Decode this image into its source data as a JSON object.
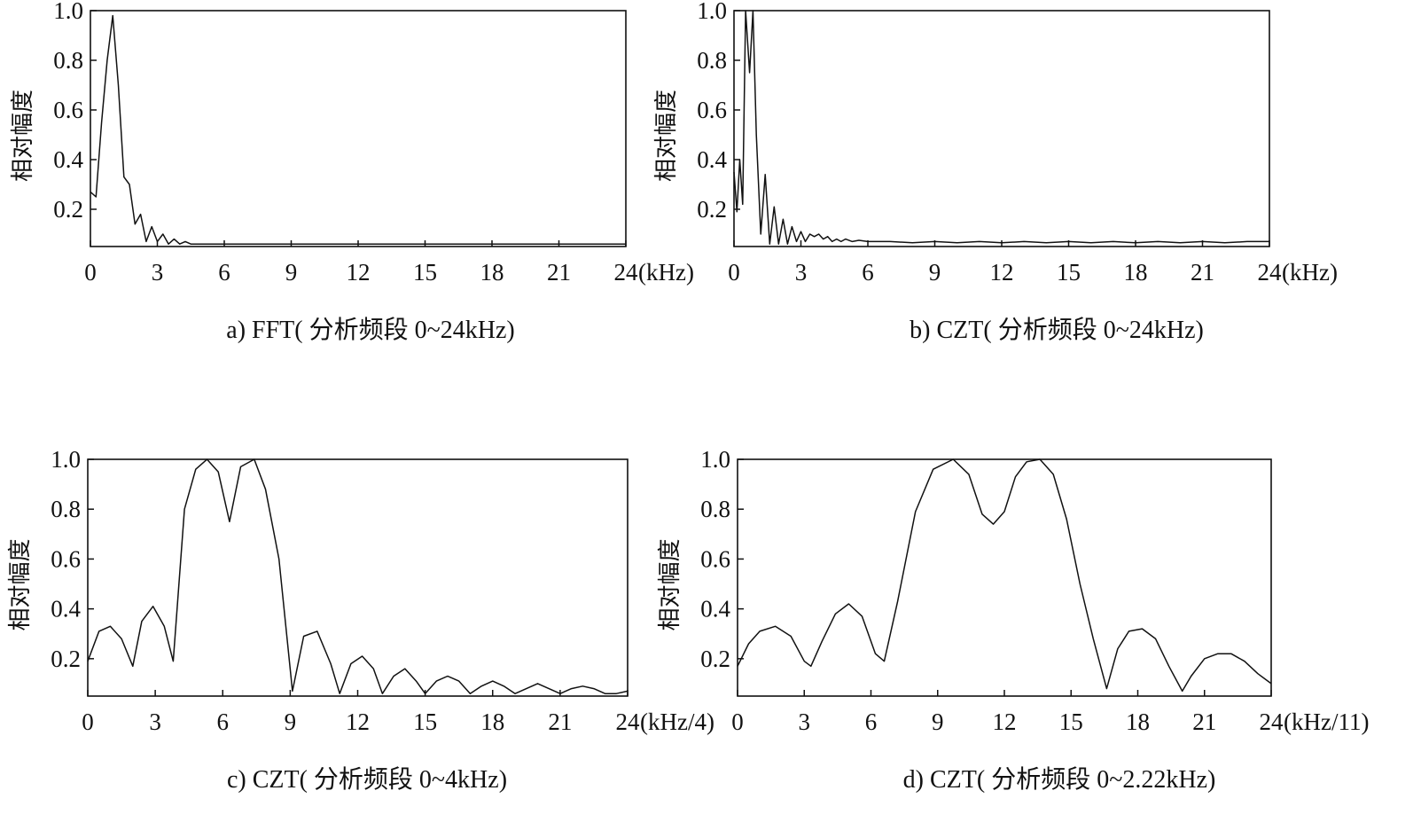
{
  "chart_data": [
    {
      "type": "line",
      "caption": "a) FFT( 分析频段 0~24kHz)",
      "ylabel": "相对幅度",
      "xunit": "(kHz)",
      "xlim": [
        0,
        24
      ],
      "ylim": [
        0.05,
        1.0
      ],
      "xticks": [
        0,
        3,
        6,
        9,
        12,
        15,
        18,
        21,
        24
      ],
      "yticks": [
        "0.2",
        "0.4",
        "0.6",
        "0.8",
        "1.0"
      ],
      "series": [
        {
          "x": [
            0,
            0.25,
            0.5,
            0.75,
            1.0,
            1.25,
            1.5,
            1.75,
            2.0,
            2.25,
            2.5,
            2.75,
            3.0,
            3.25,
            3.5,
            3.75,
            4.0,
            4.25,
            4.5,
            5,
            6,
            9,
            12,
            15,
            18,
            21,
            24
          ],
          "y": [
            0.27,
            0.25,
            0.55,
            0.8,
            0.98,
            0.7,
            0.33,
            0.3,
            0.14,
            0.18,
            0.07,
            0.13,
            0.07,
            0.1,
            0.06,
            0.08,
            0.06,
            0.07,
            0.06,
            0.06,
            0.06,
            0.06,
            0.06,
            0.06,
            0.06,
            0.06,
            0.06
          ]
        }
      ]
    },
    {
      "type": "line",
      "caption": "b) CZT( 分析频段 0~24kHz)",
      "ylabel": "相对幅度",
      "xunit": "(kHz)",
      "xlim": [
        0,
        24
      ],
      "ylim": [
        0.05,
        1.0
      ],
      "xticks": [
        0,
        3,
        6,
        9,
        12,
        15,
        18,
        21,
        24
      ],
      "yticks": [
        "0.2",
        "0.4",
        "0.6",
        "0.8",
        "1.0"
      ],
      "series": [
        {
          "x": [
            0,
            0.13,
            0.26,
            0.39,
            0.52,
            0.7,
            0.85,
            1.0,
            1.2,
            1.4,
            1.6,
            1.8,
            2.0,
            2.2,
            2.4,
            2.6,
            2.8,
            3.0,
            3.2,
            3.4,
            3.6,
            3.8,
            4.0,
            4.2,
            4.4,
            4.6,
            4.8,
            5.0,
            5.3,
            5.6,
            6.0,
            7,
            8,
            9,
            10,
            11,
            12,
            13,
            14,
            15,
            16,
            17,
            18,
            19,
            20,
            21,
            22,
            23,
            24
          ],
          "y": [
            0.35,
            0.19,
            0.4,
            0.22,
            1.0,
            0.75,
            1.0,
            0.5,
            0.1,
            0.34,
            0.06,
            0.21,
            0.06,
            0.16,
            0.06,
            0.13,
            0.07,
            0.11,
            0.07,
            0.1,
            0.09,
            0.1,
            0.08,
            0.09,
            0.07,
            0.08,
            0.07,
            0.08,
            0.07,
            0.075,
            0.07,
            0.07,
            0.065,
            0.07,
            0.065,
            0.07,
            0.065,
            0.07,
            0.065,
            0.07,
            0.065,
            0.07,
            0.065,
            0.07,
            0.065,
            0.07,
            0.065,
            0.07,
            0.07
          ]
        }
      ]
    },
    {
      "type": "line",
      "caption": "c) CZT( 分析频段 0~4kHz)",
      "ylabel": "相对幅度",
      "xunit": "(kHz/4)",
      "xlim": [
        0,
        24
      ],
      "ylim": [
        0.05,
        1.0
      ],
      "xticks": [
        0,
        3,
        6,
        9,
        12,
        15,
        18,
        21,
        24
      ],
      "yticks": [
        "0.2",
        "0.4",
        "0.6",
        "0.8",
        "1.0"
      ],
      "series": [
        {
          "x": [
            0,
            0.5,
            1.0,
            1.5,
            2.0,
            2.4,
            2.9,
            3.4,
            3.8,
            4.3,
            4.8,
            5.3,
            5.8,
            6.3,
            6.8,
            7.4,
            7.9,
            8.5,
            9.1,
            9.6,
            10.2,
            10.8,
            11.2,
            11.7,
            12.2,
            12.7,
            13.1,
            13.6,
            14.1,
            14.6,
            15.0,
            15.5,
            16.0,
            16.5,
            17.0,
            17.5,
            18.0,
            18.5,
            19.0,
            19.5,
            20.0,
            20.5,
            21.0,
            21.5,
            22.0,
            22.5,
            23.0,
            23.5,
            24.0
          ],
          "y": [
            0.19,
            0.31,
            0.33,
            0.28,
            0.17,
            0.35,
            0.41,
            0.33,
            0.19,
            0.8,
            0.96,
            1.0,
            0.95,
            0.75,
            0.97,
            1.0,
            0.88,
            0.6,
            0.07,
            0.29,
            0.31,
            0.18,
            0.06,
            0.18,
            0.21,
            0.16,
            0.06,
            0.13,
            0.16,
            0.11,
            0.06,
            0.11,
            0.13,
            0.11,
            0.06,
            0.09,
            0.11,
            0.09,
            0.06,
            0.08,
            0.1,
            0.08,
            0.06,
            0.08,
            0.09,
            0.08,
            0.06,
            0.06,
            0.07
          ]
        }
      ]
    },
    {
      "type": "line",
      "caption": "d) CZT( 分析频段 0~2.22kHz)",
      "ylabel": "相对幅度",
      "xunit": "(kHz/11)",
      "xlim": [
        0,
        24
      ],
      "ylim": [
        0.05,
        1.0
      ],
      "xticks": [
        0,
        3,
        6,
        9,
        12,
        15,
        18,
        21,
        24
      ],
      "yticks": [
        "0.2",
        "0.4",
        "0.6",
        "0.8",
        "1.0"
      ],
      "series": [
        {
          "x": [
            0,
            0.5,
            1.0,
            1.7,
            2.4,
            3.0,
            3.3,
            3.8,
            4.4,
            5.0,
            5.6,
            6.2,
            6.6,
            7.2,
            8.0,
            8.8,
            9.7,
            10.4,
            11.0,
            11.5,
            12.0,
            12.5,
            13.0,
            13.6,
            14.2,
            14.8,
            15.4,
            16.0,
            16.6,
            17.1,
            17.6,
            18.2,
            18.8,
            19.4,
            20.0,
            20.4,
            21.0,
            21.6,
            22.2,
            22.8,
            23.4,
            24.0
          ],
          "y": [
            0.17,
            0.26,
            0.31,
            0.33,
            0.29,
            0.19,
            0.17,
            0.27,
            0.38,
            0.42,
            0.37,
            0.22,
            0.19,
            0.43,
            0.79,
            0.96,
            1.0,
            0.94,
            0.78,
            0.74,
            0.79,
            0.93,
            0.99,
            1.0,
            0.94,
            0.76,
            0.5,
            0.28,
            0.08,
            0.24,
            0.31,
            0.32,
            0.28,
            0.17,
            0.07,
            0.13,
            0.2,
            0.22,
            0.22,
            0.19,
            0.14,
            0.1
          ]
        }
      ]
    }
  ]
}
